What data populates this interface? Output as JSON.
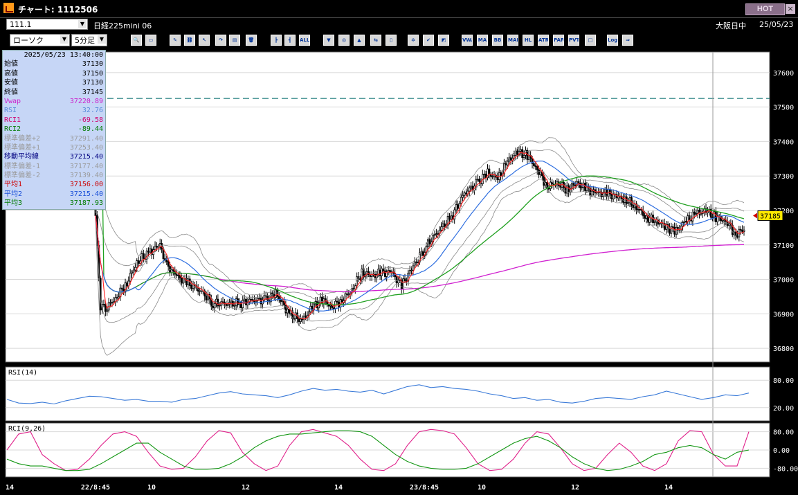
{
  "window": {
    "title": "チャート: 1112506",
    "hot_label": "HOT",
    "close_label": "×",
    "icon": "chart-app-icon",
    "accent": "#ff9a1a"
  },
  "code_bar": {
    "code_value": "111.1",
    "instrument": "日経225mini 06",
    "market_status": "大阪日中",
    "date": "25/05/23"
  },
  "toolbar": {
    "chart_type": "ローソク",
    "interval": "5分足",
    "buttons": [
      {
        "icon": "zoom-icon",
        "text": "🔍"
      },
      {
        "icon": "window-icon",
        "text": "▭"
      },
      {
        "icon": "pencil-icon",
        "text": "✎"
      },
      {
        "icon": "link-icon",
        "text": "⛓"
      },
      {
        "icon": "cursor-icon",
        "text": "↖"
      },
      {
        "icon": "redo-icon",
        "text": "↷"
      },
      {
        "icon": "document-icon",
        "text": "▤"
      },
      {
        "icon": "trash-icon",
        "text": "🗑"
      },
      {
        "icon": "candle-a-icon",
        "text": "┣"
      },
      {
        "icon": "candle-b-icon",
        "text": "┫"
      },
      {
        "icon": "all-icon",
        "text": "ALL"
      },
      {
        "icon": "stamp-icon",
        "text": "▼"
      },
      {
        "icon": "search-chart-icon",
        "text": "◎"
      },
      {
        "icon": "chart-up-icon",
        "text": "▲"
      },
      {
        "icon": "compare-icon",
        "text": "⇆"
      },
      {
        "icon": "gray-icon",
        "text": "▯"
      },
      {
        "icon": "settings-icon",
        "text": "✲"
      },
      {
        "icon": "wrench-icon",
        "text": "✔"
      },
      {
        "icon": "color-icon",
        "text": "◩"
      },
      {
        "icon": "vwap-icon",
        "text": "VWAP"
      },
      {
        "icon": "ma-icon",
        "text": "MA"
      },
      {
        "icon": "bb-icon",
        "text": "BB"
      },
      {
        "icon": "mae-icon",
        "text": "MAE"
      },
      {
        "icon": "hl-icon",
        "text": "HL"
      },
      {
        "icon": "atr-icon",
        "text": "ATR"
      },
      {
        "icon": "para-icon",
        "text": "PAR"
      },
      {
        "icon": "pvt-icon",
        "text": "PVT"
      },
      {
        "icon": "box-icon",
        "text": "□"
      },
      {
        "icon": "log-icon",
        "text": "Log"
      },
      {
        "icon": "export-icon",
        "text": "⇒"
      }
    ]
  },
  "info_panel": {
    "datetime": "2025/05/23 13:40:00",
    "rows": [
      {
        "label": "始値",
        "value": "37130",
        "color": "#000000"
      },
      {
        "label": "高値",
        "value": "37150",
        "color": "#000000"
      },
      {
        "label": "安値",
        "value": "37130",
        "color": "#000000"
      },
      {
        "label": "終値",
        "value": "37145",
        "color": "#000000"
      },
      {
        "label": "Vwap",
        "value": "37220.89",
        "color": "#cc22cc"
      },
      {
        "label": "RSI",
        "value": "32.76",
        "color": "#5a8cdc"
      },
      {
        "label": "RCI1",
        "value": "-69.58",
        "color": "#d0006e"
      },
      {
        "label": "RCI2",
        "value": "-89.44",
        "color": "#007a00"
      },
      {
        "label": "標準偏差+2",
        "value": "37291.40",
        "color": "#9a9a9a"
      },
      {
        "label": "標準偏差+1",
        "value": "37253.40",
        "color": "#9a9a9a"
      },
      {
        "label": "移動平均線",
        "value": "37215.40",
        "color": "#000080"
      },
      {
        "label": "標準偏差-1",
        "value": "37177.40",
        "color": "#9a9a9a"
      },
      {
        "label": "標準偏差-2",
        "value": "37139.40",
        "color": "#9a9a9a"
      },
      {
        "label": "平均1",
        "value": "37156.00",
        "color": "#cc0000"
      },
      {
        "label": "平均2",
        "value": "37215.40",
        "color": "#1a4fd8"
      },
      {
        "label": "平均3",
        "value": "37187.93",
        "color": "#007a00"
      }
    ]
  },
  "chart_data": [
    {
      "type": "candlestick",
      "interval": "5分足",
      "price_ticks": [
        "37600",
        "37500",
        "37400",
        "37300",
        "37200",
        "37100",
        "37000",
        "36900",
        "36800"
      ],
      "ylim": [
        36760,
        37660
      ],
      "x_tick_labels": [
        "14",
        "22/8:45",
        "10",
        "12",
        "14",
        "23/8:45",
        "10",
        "12",
        "14"
      ],
      "current_price": "37185",
      "dashed_level": 37525,
      "close_path": [
        [
          37180,
          3
        ],
        [
          36920,
          4
        ],
        [
          36920,
          6
        ],
        [
          36950,
          6
        ],
        [
          36990,
          6
        ],
        [
          37050,
          8
        ],
        [
          37080,
          6
        ],
        [
          37100,
          4
        ],
        [
          37040,
          6
        ],
        [
          37010,
          6
        ],
        [
          36990,
          8
        ],
        [
          36970,
          8
        ],
        [
          36930,
          8
        ],
        [
          36930,
          8
        ],
        [
          36930,
          8
        ],
        [
          36940,
          8
        ],
        [
          36940,
          6
        ],
        [
          36960,
          8
        ],
        [
          36900,
          8
        ],
        [
          36880,
          6
        ],
        [
          36920,
          6
        ],
        [
          36940,
          6
        ],
        [
          36920,
          6
        ],
        [
          36940,
          6
        ],
        [
          36970,
          6
        ],
        [
          37020,
          6
        ],
        [
          37010,
          6
        ],
        [
          37020,
          6
        ],
        [
          37020,
          6
        ],
        [
          36980,
          6
        ],
        [
          37030,
          8
        ],
        [
          37090,
          8
        ],
        [
          37140,
          8
        ],
        [
          37180,
          8
        ],
        [
          37250,
          8
        ],
        [
          37280,
          6
        ],
        [
          37310,
          6
        ],
        [
          37290,
          6
        ],
        [
          37340,
          6
        ],
        [
          37370,
          6
        ],
        [
          37360,
          6
        ],
        [
          37320,
          6
        ],
        [
          37270,
          6
        ],
        [
          37280,
          6
        ],
        [
          37260,
          6
        ],
        [
          37280,
          6
        ],
        [
          37260,
          6
        ],
        [
          37250,
          6
        ],
        [
          37250,
          6
        ],
        [
          37240,
          6
        ],
        [
          37230,
          6
        ],
        [
          37210,
          6
        ],
        [
          37180,
          6
        ],
        [
          37170,
          6
        ],
        [
          37150,
          6
        ],
        [
          37140,
          6
        ],
        [
          37170,
          6
        ],
        [
          37190,
          6
        ],
        [
          37200,
          6
        ],
        [
          37180,
          6
        ],
        [
          37170,
          6
        ],
        [
          37130,
          6
        ],
        [
          37150,
          6
        ]
      ],
      "overlays": [
        {
          "name": "平均1",
          "color": "#ff2a2a",
          "period": 5
        },
        {
          "name": "平均2",
          "color": "#2f6fe0",
          "period": 25
        },
        {
          "name": "平均3",
          "color": "#1fa01f",
          "period": 75
        },
        {
          "name": "Vwap",
          "color": "#d020d0"
        },
        {
          "name": "標準偏差",
          "color": "#888888"
        }
      ]
    },
    {
      "type": "line",
      "title": "RSI(14)",
      "ticks": [
        "80.00",
        "20.00"
      ],
      "ylim": [
        0,
        100
      ],
      "color": "#3a7ad8",
      "values": [
        38,
        30,
        29,
        32,
        28,
        35,
        40,
        45,
        44,
        40,
        36,
        38,
        34,
        34,
        32,
        38,
        40,
        46,
        52,
        55,
        50,
        48,
        46,
        42,
        48,
        56,
        62,
        58,
        60,
        56,
        54,
        58,
        50,
        58,
        66,
        70,
        64,
        66,
        62,
        60,
        56,
        50,
        46,
        40,
        42,
        36,
        38,
        32,
        30,
        34,
        40,
        42,
        40,
        38,
        44,
        48,
        56,
        50,
        44,
        38,
        42,
        48,
        46,
        52
      ]
    },
    {
      "type": "line",
      "title": "RCI(9,26)",
      "ticks": [
        "80.00",
        "0.00",
        "-80.00"
      ],
      "ylim": [
        -100,
        100
      ],
      "series": [
        {
          "name": "RCI1",
          "color": "#e0208a",
          "values": [
            0,
            70,
            80,
            -20,
            -60,
            -90,
            -85,
            -40,
            20,
            70,
            80,
            60,
            -10,
            -70,
            -85,
            -80,
            -30,
            40,
            85,
            75,
            -10,
            -60,
            -90,
            -70,
            20,
            80,
            90,
            75,
            60,
            20,
            -40,
            -85,
            -90,
            -60,
            20,
            80,
            90,
            85,
            70,
            10,
            -60,
            -90,
            -85,
            -40,
            30,
            80,
            70,
            10,
            -60,
            -90,
            -80,
            -20,
            30,
            -10,
            -70,
            -90,
            -60,
            40,
            85,
            80,
            -20,
            -70,
            -70,
            80
          ]
        },
        {
          "name": "RCI2",
          "color": "#129612",
          "values": [
            -40,
            -60,
            -70,
            -70,
            -80,
            -90,
            -90,
            -85,
            -60,
            -30,
            0,
            30,
            30,
            -10,
            -40,
            -70,
            -85,
            -85,
            -80,
            -60,
            -30,
            10,
            40,
            60,
            70,
            70,
            75,
            80,
            85,
            85,
            80,
            60,
            20,
            -20,
            -50,
            -70,
            -80,
            -85,
            -85,
            -80,
            -60,
            -30,
            0,
            30,
            50,
            60,
            40,
            10,
            -30,
            -60,
            -80,
            -90,
            -85,
            -70,
            -50,
            -20,
            -10,
            10,
            20,
            10,
            -20,
            -40,
            -10,
            0
          ]
        }
      ]
    }
  ]
}
